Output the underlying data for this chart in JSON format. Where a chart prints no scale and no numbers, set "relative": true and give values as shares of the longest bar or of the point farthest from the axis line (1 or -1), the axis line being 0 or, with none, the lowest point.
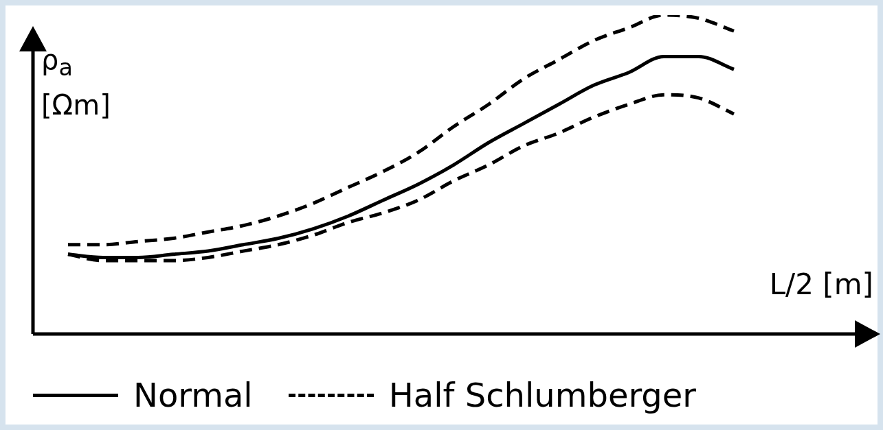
{
  "chart_data": {
    "type": "line",
    "relative": true,
    "xlabel": "L/2 [m]",
    "ylabel": "ρ$_{a}$ [Ωm]",
    "legend": "bottom",
    "marker": "none",
    "categories": [
      null,
      null,
      null,
      null,
      null,
      null,
      null,
      null,
      null,
      null,
      null,
      null,
      null,
      null,
      null,
      null,
      null,
      null,
      null,
      null,
      null,
      null,
      null,
      null,
      null
    ],
    "series": [
      {
        "name": "Normal",
        "color": "#000000",
        "line_style": "solid",
        "values": [
          null,
          0.25,
          0.24,
          0.24,
          0.25,
          0.26,
          0.28,
          0.3,
          0.33,
          0.37,
          0.42,
          0.47,
          0.53,
          0.6,
          0.66,
          0.72,
          0.78,
          0.82,
          0.87,
          0.87,
          0.83,
          null,
          null,
          null,
          null
        ]
      },
      {
        "name": "Half Schlumberger",
        "color": "#000000",
        "line_style": "dashed",
        "values": [
          null,
          0.28,
          0.28,
          0.29,
          0.3,
          0.32,
          0.34,
          0.37,
          0.41,
          0.46,
          0.51,
          0.57,
          0.65,
          0.72,
          0.8,
          0.86,
          0.92,
          0.96,
          1.0,
          0.99,
          0.95,
          null,
          null,
          null,
          null
        ]
      },
      {
        "color": "#000000",
        "line_style": "dashed",
        "values": [
          null,
          0.25,
          0.23,
          0.23,
          0.23,
          0.24,
          0.26,
          0.28,
          0.31,
          0.35,
          0.38,
          0.42,
          0.48,
          0.53,
          0.59,
          0.63,
          0.68,
          0.72,
          0.75,
          0.74,
          0.69,
          null,
          null,
          null,
          null
        ]
      }
    ]
  }
}
